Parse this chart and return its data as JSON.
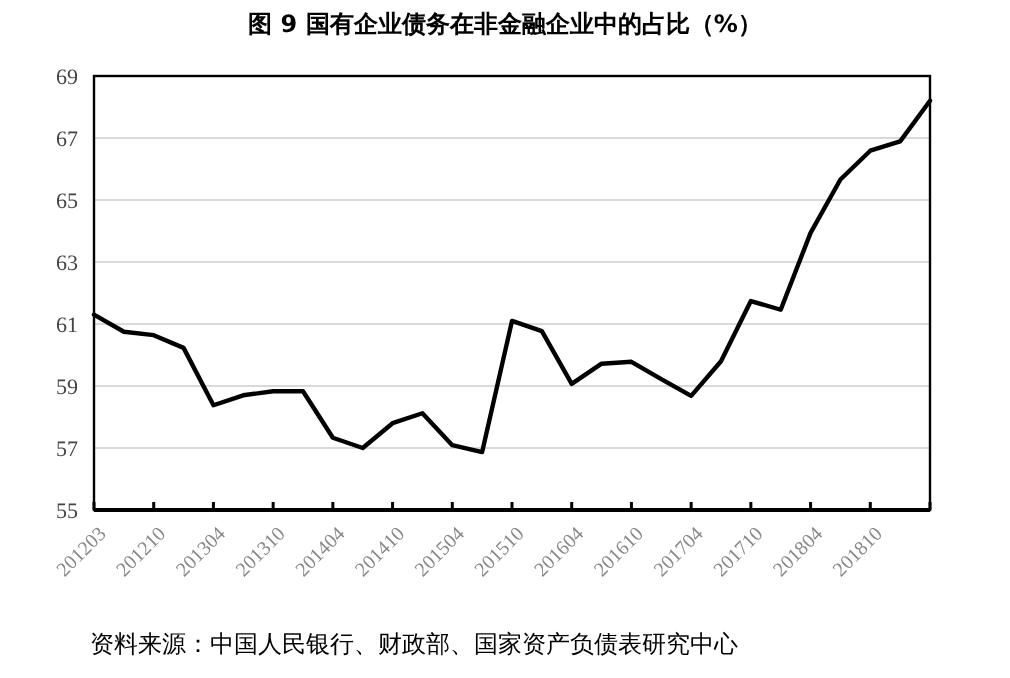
{
  "chart_data": {
    "type": "line",
    "title": "图 9  国有企业债务在非金融企业中的占比（%）",
    "categories": [
      "201203",
      null,
      "201210",
      null,
      "201304",
      null,
      "201310",
      null,
      "201404",
      null,
      "201410",
      null,
      "201504",
      null,
      "201510",
      null,
      "201604",
      null,
      "201610",
      null,
      "201704",
      null,
      "201710",
      null,
      "201804",
      null,
      "201810",
      null,
      null
    ],
    "series": [
      {
        "color": "#000000",
        "values": [
          61.3,
          60.75,
          60.64,
          60.23,
          58.38,
          58.7,
          58.83,
          58.83,
          57.33,
          57.0,
          57.8,
          58.12,
          57.09,
          56.87,
          61.1,
          60.77,
          59.07,
          59.72,
          59.78,
          59.22,
          58.68,
          59.8,
          61.74,
          61.46,
          63.94,
          65.66,
          66.59,
          66.89,
          68.2
        ]
      }
    ],
    "ylim": [
      55,
      69
    ],
    "yticks": [
      55,
      57,
      59,
      61,
      63,
      65,
      67,
      69
    ],
    "grid": "y",
    "marker": "none",
    "line_style": "solid",
    "annotations": [
      "资料来源：中国人民银行、财政部、国家资产负债表研究中心"
    ]
  }
}
